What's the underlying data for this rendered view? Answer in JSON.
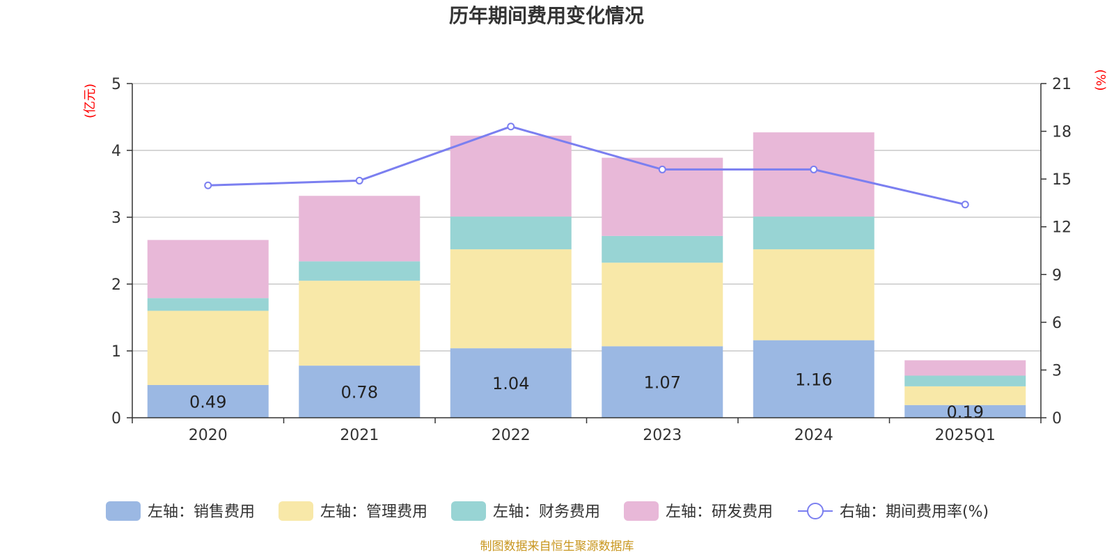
{
  "chart_data": {
    "type": "bar",
    "title": "历年期间费用变化情况",
    "categories": [
      "2020",
      "2021",
      "2022",
      "2023",
      "2024",
      "2025Q1"
    ],
    "left_axis": {
      "unit": "(亿元)",
      "ylim": [
        0,
        5
      ],
      "ticks": [
        "0",
        "1",
        "2",
        "3",
        "4",
        "5"
      ]
    },
    "right_axis": {
      "unit": "(%)",
      "ylim": [
        0,
        21
      ],
      "ticks": [
        "0",
        "3",
        "6",
        "9",
        "12",
        "15",
        "18",
        "21"
      ]
    },
    "series": [
      {
        "name": "左轴：销售费用",
        "color": "#9bb8e3",
        "stack": true,
        "axis": "left",
        "values": [
          0.49,
          0.78,
          1.04,
          1.07,
          1.16,
          0.19
        ],
        "labels": [
          "0.49",
          "0.78",
          "1.04",
          "1.07",
          "1.16",
          "0.19"
        ]
      },
      {
        "name": "左轴：管理费用",
        "color": "#f8e8a8",
        "stack": true,
        "axis": "left",
        "values": [
          1.11,
          1.27,
          1.48,
          1.25,
          1.36,
          0.28
        ]
      },
      {
        "name": "左轴：财务费用",
        "color": "#98d4d4",
        "stack": true,
        "axis": "left",
        "values": [
          0.19,
          0.29,
          0.49,
          0.4,
          0.49,
          0.16
        ]
      },
      {
        "name": "左轴：研发费用",
        "color": "#e8b8d8",
        "stack": true,
        "axis": "left",
        "values": [
          0.87,
          0.98,
          1.21,
          1.17,
          1.26,
          0.23
        ]
      },
      {
        "name": "右轴：期间费用率(%)",
        "color": "#7b7ff0",
        "type": "line",
        "axis": "right",
        "values": [
          14.6,
          14.9,
          18.3,
          15.6,
          15.6,
          13.4
        ]
      }
    ],
    "grid": true,
    "legend_position": "bottom"
  },
  "footer": {
    "source": "制图数据来自恒生聚源数据库"
  }
}
